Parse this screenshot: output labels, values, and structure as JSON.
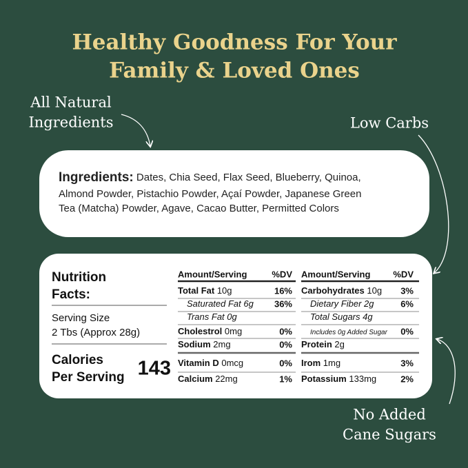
{
  "title": [
    "Healthy Goodness For Your",
    "Family & Loved Ones"
  ],
  "callouts": {
    "natural": [
      "All Natural",
      "Ingredients"
    ],
    "carbs": [
      "Low Carbs"
    ],
    "sugar": [
      "No Added",
      "Cane Sugars"
    ]
  },
  "ingredients": {
    "label": "Ingredients:",
    "lines": [
      "Dates, Chia Seed, Flax Seed, Blueberry, Quinoa,",
      "Almond Powder, Pistachio Powder, Açaí Powder, Japanese Green",
      "Tea (Matcha) Powder, Agave, Cacao Butter, Permitted Colors"
    ]
  },
  "nutrition": {
    "title": [
      "Nutrition",
      "Facts:"
    ],
    "serving_label": "Serving Size",
    "serving_value": "2 Tbs (Approx 28g)",
    "calories_label": [
      "Calories",
      "Per Serving"
    ],
    "calories": 143,
    "columns": [
      {
        "header": [
          "Amount/Serving",
          "%DV"
        ],
        "rows": [
          {
            "name": "Total Fat",
            "amount": "10g",
            "dv": "16%"
          },
          {
            "name": "Saturated Fat",
            "amount": "6g",
            "dv": "36%"
          },
          {
            "name": "Trans Fat",
            "amount": "0g"
          },
          {
            "name": "Cholestrol",
            "amount": "0mg",
            "dv": "0%"
          },
          {
            "name": "Sodium",
            "amount": "2mg",
            "dv": "0%"
          },
          {
            "name": "Vitamin D",
            "amount": "0mcg",
            "dv": "0%"
          },
          {
            "name": "Calcium",
            "amount": "22mg",
            "dv": "1%"
          }
        ]
      },
      {
        "header": [
          "Amount/Serving",
          "%DV"
        ],
        "rows": [
          {
            "name": "Carbohydrates",
            "amount": "10g",
            "dv": "3%"
          },
          {
            "name": "Dietary Fiber",
            "amount": "2g",
            "dv": "6%"
          },
          {
            "name": "Total Sugars",
            "amount": "4g"
          },
          {
            "name": "Includes 0g Added Sugar",
            "dv": "0%"
          },
          {
            "name": "Protein",
            "amount": "2g"
          },
          {
            "name": "Irom",
            "amount": "1mg",
            "dv": "3%"
          },
          {
            "name": "Potassium",
            "amount": "133mg",
            "dv": "2%"
          }
        ]
      }
    ]
  }
}
